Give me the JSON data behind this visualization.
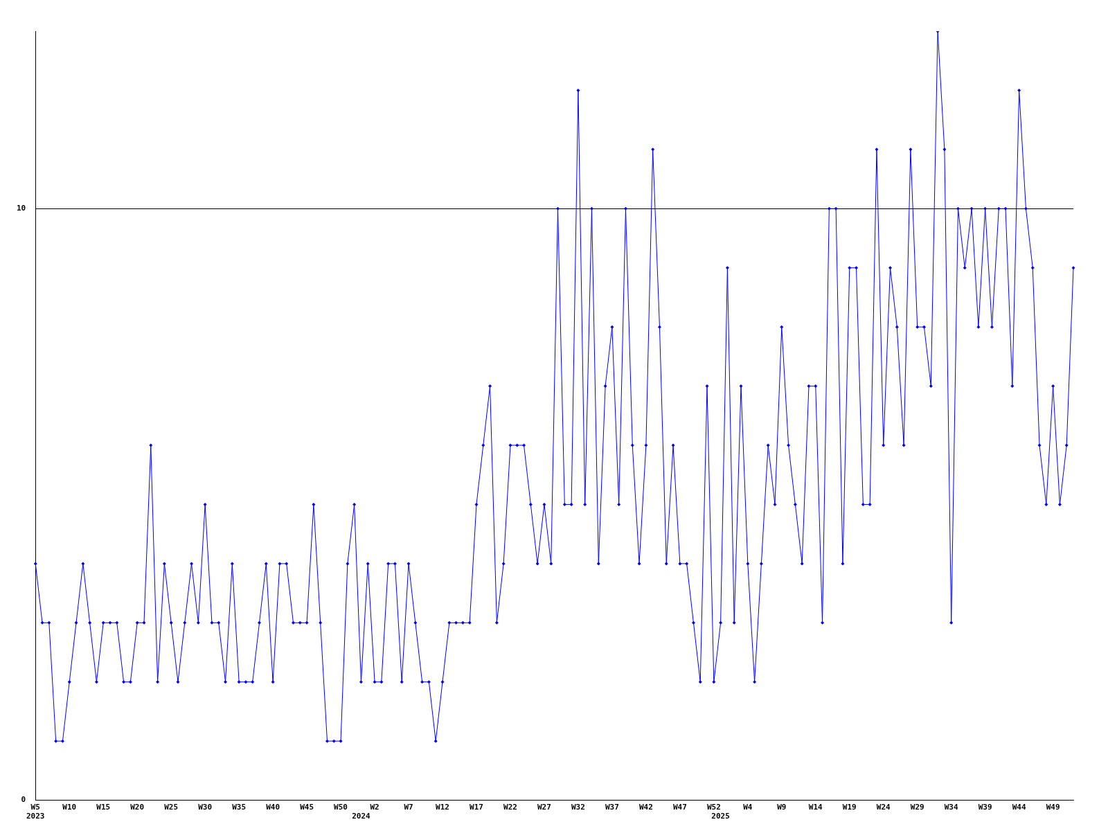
{
  "chart_data": {
    "type": "line",
    "categories": [
      "W5\n2023",
      null,
      null,
      null,
      null,
      "W10",
      null,
      null,
      null,
      null,
      "W15",
      null,
      null,
      null,
      null,
      "W20",
      null,
      null,
      null,
      null,
      "W25",
      null,
      null,
      null,
      null,
      "W30",
      null,
      null,
      null,
      null,
      "W35",
      null,
      null,
      null,
      null,
      "W40",
      null,
      null,
      null,
      null,
      "W45",
      null,
      null,
      null,
      null,
      "W50",
      null,
      null,
      "\n2024",
      null,
      "W2",
      null,
      null,
      null,
      null,
      "W7",
      null,
      null,
      null,
      null,
      "W12",
      null,
      null,
      null,
      null,
      "W17",
      null,
      null,
      null,
      null,
      "W22",
      null,
      null,
      null,
      null,
      "W27",
      null,
      null,
      null,
      null,
      "W32",
      null,
      null,
      null,
      null,
      "W37",
      null,
      null,
      null,
      null,
      "W42",
      null,
      null,
      null,
      null,
      "W47",
      null,
      null,
      null,
      null,
      "W52",
      "\n2025",
      null,
      null,
      null,
      "W4",
      null,
      null,
      null,
      null,
      "W9",
      null,
      null,
      null,
      null,
      "W14",
      null,
      null,
      null,
      null,
      "W19",
      null,
      null,
      null,
      null,
      "W24",
      null,
      null,
      null,
      null,
      "W29",
      null,
      null,
      null,
      null,
      "W34",
      null,
      null,
      null,
      null,
      "W39",
      null,
      null,
      null,
      null,
      "W44",
      null,
      null,
      null,
      null,
      "W49",
      null,
      null,
      null
    ],
    "series": [
      {
        "color": "#0000ff",
        "values": [
          4,
          3,
          3,
          1,
          1,
          2,
          3,
          4,
          3,
          2,
          3,
          3,
          3,
          2,
          2,
          3,
          3,
          6,
          2,
          4,
          3,
          2,
          3,
          4,
          3,
          5,
          3,
          3,
          2,
          4,
          2,
          2,
          2,
          3,
          4,
          2,
          4,
          4,
          3,
          3,
          3,
          5,
          3,
          1,
          1,
          1,
          4,
          5,
          2,
          4,
          2,
          2,
          4,
          4,
          2,
          4,
          3,
          2,
          2,
          1,
          2,
          3,
          3,
          3,
          3,
          5,
          6,
          7,
          3,
          4,
          6,
          6,
          6,
          5,
          4,
          5,
          4,
          10,
          5,
          5,
          12,
          5,
          10,
          4,
          7,
          8,
          5,
          10,
          6,
          4,
          6,
          11,
          8,
          4,
          6,
          4,
          4,
          3,
          2,
          7,
          2,
          3,
          9,
          3,
          7,
          4,
          2,
          4,
          6,
          5,
          8,
          6,
          5,
          4,
          7,
          7,
          3,
          10,
          10,
          4,
          9,
          9,
          5,
          5,
          11,
          6,
          9,
          8,
          6,
          11,
          8,
          8,
          7,
          13,
          11,
          3,
          10,
          9,
          10,
          8,
          10,
          8,
          10,
          10,
          7,
          12,
          10,
          9,
          6,
          5,
          7,
          5,
          6,
          9
        ]
      }
    ],
    "ylim": [
      0,
      13
    ],
    "yticks": [
      0,
      10
    ],
    "grid": "y",
    "legend": false,
    "marker": "diamond",
    "line_style": "solid"
  }
}
